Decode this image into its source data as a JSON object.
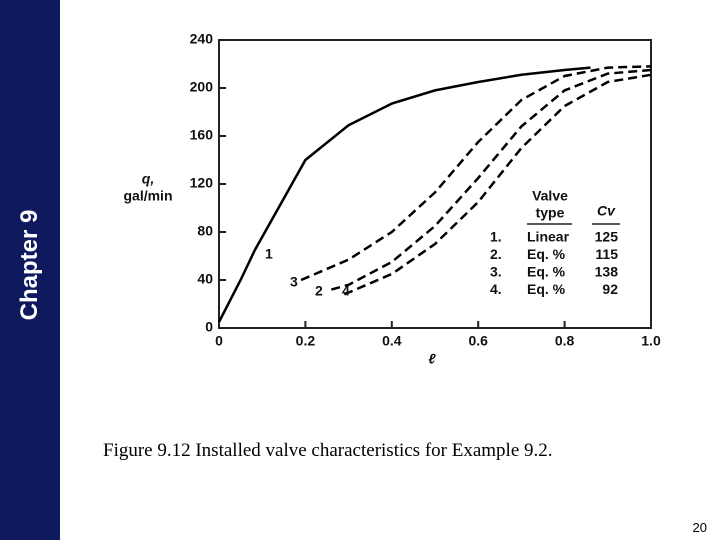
{
  "sidebar": "Chapter 9",
  "caption": "Figure 9.12 Installed valve characteristics for Example 9.2.",
  "page_number": "20",
  "chart_data": {
    "type": "line",
    "x_label": "ℓ",
    "y_label": [
      "q,",
      "gal/min"
    ],
    "xlim": [
      0,
      1
    ],
    "xticks": [
      0,
      0.2,
      0.4,
      0.6,
      0.8,
      {
        "value": 1,
        "label": "1.0"
      }
    ],
    "ylim": [
      0,
      240
    ],
    "yticks": [
      0,
      40,
      80,
      120,
      160,
      200,
      240
    ],
    "legend_header": [
      "Valve",
      "type",
      "Cv"
    ],
    "series": [
      {
        "name": "1",
        "legend_number": "1.",
        "valve_type": "Linear",
        "cv": 125,
        "color": "#000000",
        "dashed": false,
        "x": [
          0,
          0.05,
          0.083,
          0.2,
          0.3,
          0.4,
          0.5,
          0.6,
          0.7,
          0.8,
          0.86
        ],
        "values": [
          5,
          40,
          65,
          140,
          169,
          187,
          198,
          205,
          211,
          215,
          217
        ]
      },
      {
        "name": "2",
        "legend_number": "2.",
        "valve_type": "Eq. %",
        "cv": 115,
        "color": "#000000",
        "dashed": true,
        "x": [
          0.26,
          0.3,
          0.4,
          0.5,
          0.6,
          0.7,
          0.8,
          0.9,
          1.0
        ],
        "values": [
          32,
          36,
          55,
          85,
          125,
          168,
          198,
          212,
          215
        ]
      },
      {
        "name": "3",
        "legend_number": "3.",
        "valve_type": "Eq. %",
        "cv": 138,
        "color": "#000000",
        "dashed": true,
        "x": [
          0.19,
          0.3,
          0.4,
          0.5,
          0.6,
          0.7,
          0.8,
          0.9,
          1.0
        ],
        "values": [
          40,
          57,
          80,
          113,
          155,
          190,
          210,
          217,
          218
        ]
      },
      {
        "name": "4",
        "legend_number": "4.",
        "valve_type": "Eq. %",
        "cv": 92,
        "color": "#000000",
        "dashed": true,
        "x": [
          0.29,
          0.4,
          0.5,
          0.6,
          0.7,
          0.8,
          0.9,
          1.0
        ],
        "values": [
          28,
          45,
          70,
          105,
          150,
          185,
          205,
          211
        ]
      }
    ]
  }
}
